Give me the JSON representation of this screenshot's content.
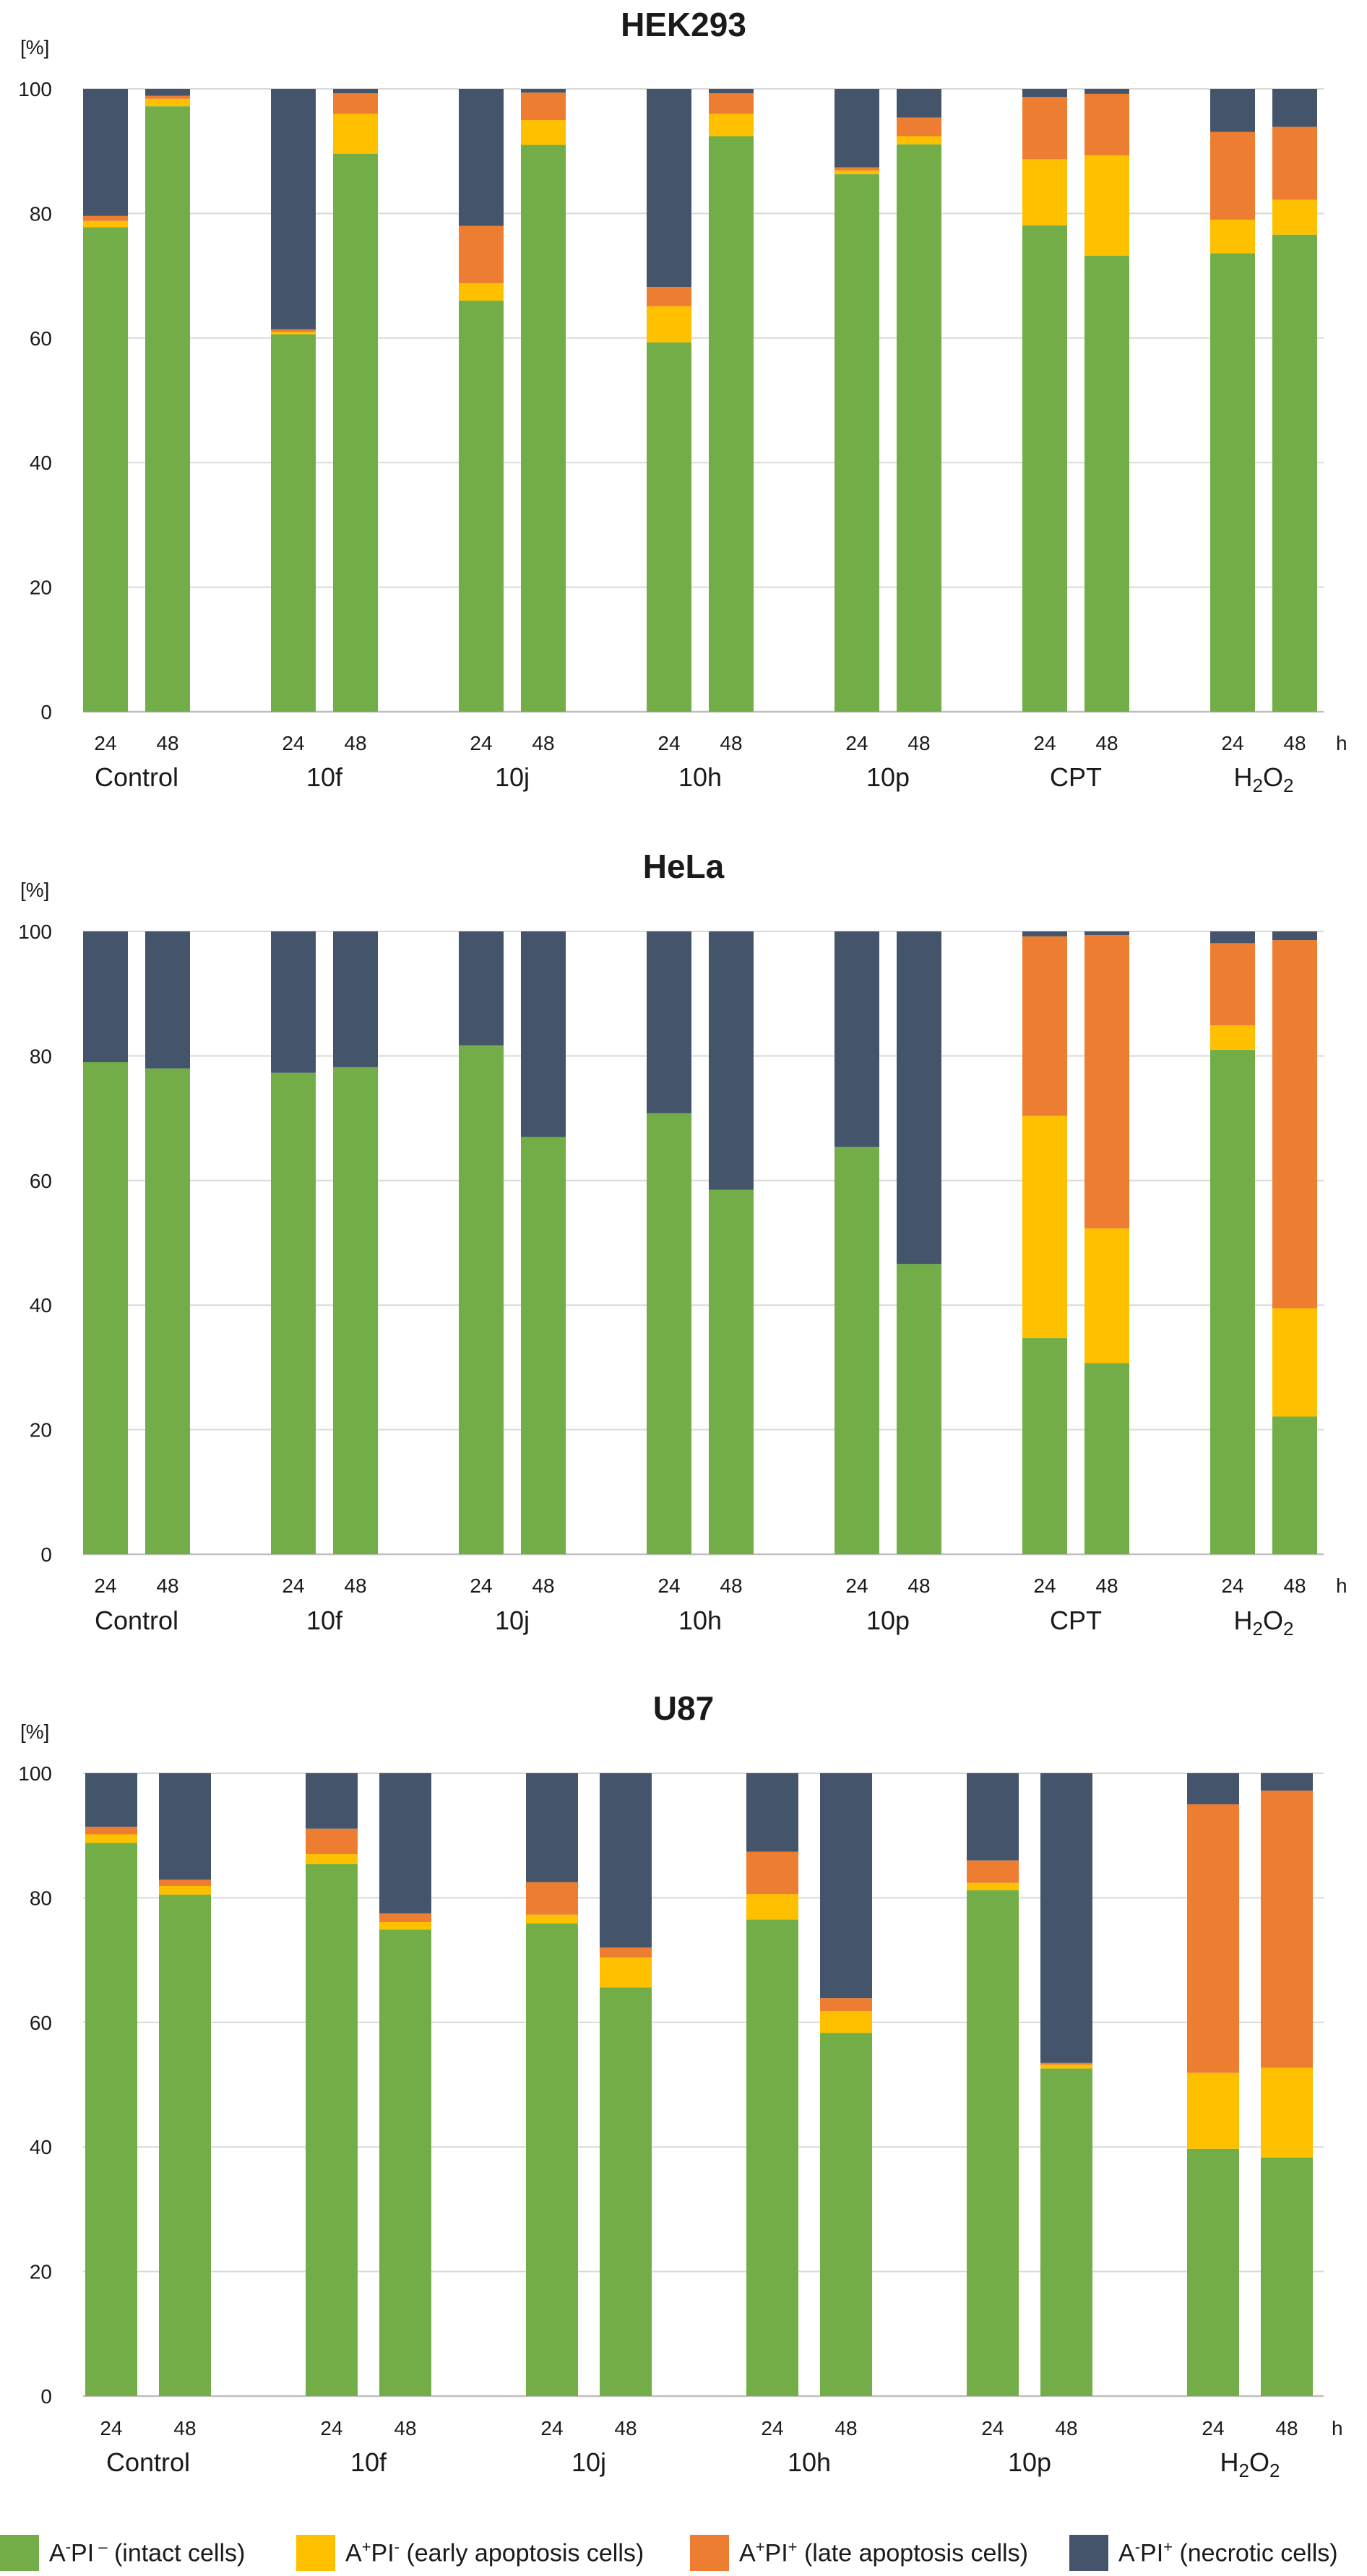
{
  "colors": {
    "intact": "#72AD47",
    "early": "#FFC000",
    "late": "#ED7D31",
    "necrotic": "#44546A",
    "grid": "#D9D9D9",
    "axis": "#BFBFBF",
    "text": "#1a1a1a"
  },
  "legend": [
    {
      "key": "intact",
      "prefix": "A",
      "sup1": "-",
      "mid": "PI",
      "sup2": " –",
      "suffix": " (intact cells)"
    },
    {
      "key": "early",
      "prefix": "A",
      "sup1": "+",
      "mid": "PI",
      "sup2": "-",
      "suffix": " (early apoptosis cells)"
    },
    {
      "key": "late",
      "prefix": "A",
      "sup1": "+",
      "mid": "PI",
      "sup2": "+",
      "suffix": " (late apoptosis cells)"
    },
    {
      "key": "necrotic",
      "prefix": "A",
      "sup1": "-",
      "mid": "PI",
      "sup2": "+",
      "suffix": " (necrotic cells)"
    }
  ],
  "chart_data": [
    {
      "type": "stacked-bar",
      "title": "HEK293",
      "ylabel": "[%]",
      "ylim": [
        0,
        100
      ],
      "yticks": [
        "0",
        "20",
        "40",
        "60",
        "80",
        "100"
      ],
      "time_unit": "h",
      "groups": [
        "Control",
        "10f",
        "10j",
        "10h",
        "10p",
        "CPT",
        "H2O2"
      ],
      "times": [
        "24",
        "48"
      ],
      "series": [
        {
          "name": "intact",
          "values": [
            [
              77.8,
              97.2
            ],
            [
              60.6,
              89.6
            ],
            [
              66.0,
              91.0
            ],
            [
              59.3,
              92.4
            ],
            [
              86.3,
              91.1
            ],
            [
              78.1,
              73.2
            ],
            [
              73.6,
              76.6
            ]
          ]
        },
        {
          "name": "early",
          "values": [
            [
              1.0,
              1.2
            ],
            [
              0.4,
              6.4
            ],
            [
              2.8,
              4.0
            ],
            [
              5.8,
              3.6
            ],
            [
              0.6,
              1.3
            ],
            [
              10.6,
              16.1
            ],
            [
              5.4,
              5.6
            ]
          ]
        },
        {
          "name": "late",
          "values": [
            [
              0.8,
              0.5
            ],
            [
              0.4,
              3.3
            ],
            [
              9.2,
              4.4
            ],
            [
              3.1,
              3.3
            ],
            [
              0.5,
              3.0
            ],
            [
              10.0,
              9.9
            ],
            [
              14.1,
              11.7
            ]
          ]
        },
        {
          "name": "necrotic",
          "values": [
            [
              20.4,
              1.1
            ],
            [
              38.6,
              0.7
            ],
            [
              22.0,
              0.6
            ],
            [
              31.8,
              0.7
            ],
            [
              12.6,
              4.6
            ],
            [
              1.3,
              0.8
            ],
            [
              6.9,
              6.1
            ]
          ]
        }
      ]
    },
    {
      "type": "stacked-bar",
      "title": "HeLa",
      "ylabel": "[%]",
      "ylim": [
        0,
        100
      ],
      "yticks": [
        "0",
        "20",
        "40",
        "60",
        "80",
        "100"
      ],
      "time_unit": "h",
      "groups": [
        "Control",
        "10f",
        "10j",
        "10h",
        "10p",
        "CPT",
        "H2O2"
      ],
      "times": [
        "24",
        "48"
      ],
      "series": [
        {
          "name": "intact",
          "values": [
            [
              79.0,
              78.0
            ],
            [
              77.3,
              78.2
            ],
            [
              81.7,
              67.0
            ],
            [
              70.8,
              58.5
            ],
            [
              65.4,
              46.6
            ],
            [
              34.7,
              30.7
            ],
            [
              81.0,
              22.1
            ]
          ]
        },
        {
          "name": "early",
          "values": [
            [
              0,
              0
            ],
            [
              0,
              0
            ],
            [
              0,
              0
            ],
            [
              0,
              0
            ],
            [
              0,
              0
            ],
            [
              35.7,
              21.6
            ],
            [
              3.9,
              17.4
            ]
          ]
        },
        {
          "name": "late",
          "values": [
            [
              0,
              0
            ],
            [
              0,
              0
            ],
            [
              0,
              0
            ],
            [
              0,
              0
            ],
            [
              0,
              0
            ],
            [
              28.8,
              47.1
            ],
            [
              13.2,
              59.1
            ]
          ]
        },
        {
          "name": "necrotic",
          "values": [
            [
              21.0,
              22.0
            ],
            [
              22.7,
              21.8
            ],
            [
              18.3,
              33.0
            ],
            [
              29.2,
              41.5
            ],
            [
              34.6,
              53.4
            ],
            [
              0.8,
              0.6
            ],
            [
              1.9,
              1.4
            ]
          ]
        }
      ]
    },
    {
      "type": "stacked-bar",
      "title": "U87",
      "ylabel": "[%]",
      "ylim": [
        0,
        100
      ],
      "yticks": [
        "0",
        "20",
        "40",
        "60",
        "80",
        "100"
      ],
      "time_unit": "h",
      "groups": [
        "Control",
        "10f",
        "10j",
        "10h",
        "10p",
        "H2O2"
      ],
      "times": [
        "24",
        "48"
      ],
      "series": [
        {
          "name": "intact",
          "values": [
            [
              88.8,
              80.5
            ],
            [
              85.4,
              74.9
            ],
            [
              75.9,
              65.6
            ],
            [
              76.5,
              58.3
            ],
            [
              81.2,
              52.6
            ],
            [
              39.7,
              38.3
            ]
          ]
        },
        {
          "name": "early",
          "values": [
            [
              1.4,
              1.4
            ],
            [
              1.6,
              1.2
            ],
            [
              1.4,
              4.8
            ],
            [
              4.1,
              3.5
            ],
            [
              1.2,
              0.6
            ],
            [
              12.2,
              14.4
            ]
          ]
        },
        {
          "name": "late",
          "values": [
            [
              1.2,
              1.0
            ],
            [
              4.1,
              1.4
            ],
            [
              5.2,
              1.6
            ],
            [
              6.8,
              2.1
            ],
            [
              3.6,
              0.3
            ],
            [
              43.1,
              44.5
            ]
          ]
        },
        {
          "name": "necrotic",
          "values": [
            [
              8.6,
              17.1
            ],
            [
              8.9,
              22.5
            ],
            [
              17.5,
              28.0
            ],
            [
              12.6,
              36.1
            ],
            [
              14.0,
              46.5
            ],
            [
              5.0,
              2.8
            ]
          ]
        }
      ]
    }
  ]
}
